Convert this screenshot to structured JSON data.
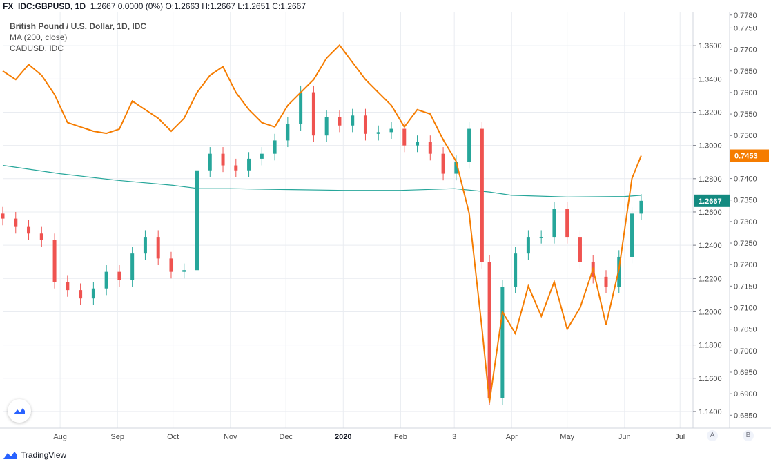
{
  "header": {
    "symbol": "FX_IDC:GBPUSD, 1D",
    "quote": "1.2667 0.0000 (0%)",
    "open_label": "O:",
    "open": "1.2663",
    "high_label": "H:",
    "high": "1.2667",
    "low_label": "L:",
    "low": "1.2651",
    "close_label": "C:",
    "close": "1.2667"
  },
  "legend": {
    "title": "British Pound / U.S. Dollar, 1D, IDC",
    "ma": "MA (200, close)",
    "overlay": "CADUSD, IDC"
  },
  "footer": {
    "brand": "TradingView"
  },
  "buttons": {
    "auto": "A",
    "log": "B"
  },
  "colors": {
    "up": "#26a69a",
    "down": "#ef5350",
    "ma": "#26a69a",
    "overlay": "#f57c00",
    "grid": "#e9ecf1",
    "last_gbp_badge": "#138a80"
  },
  "icons": {
    "tv_logo": "tradingview-cloud-icon"
  },
  "chart_data": {
    "type": "line",
    "title": "British Pound / U.S. Dollar, 1D, IDC",
    "x_ticks": [
      "Aug",
      "Sep",
      "Oct",
      "Nov",
      "Dec",
      "2020",
      "Feb",
      "3",
      "Apr",
      "May",
      "Jun",
      "Jul"
    ],
    "left_axis_gbp": {
      "ylim": [
        1.13,
        1.38
      ],
      "ticks": [
        "1.3600",
        "1.3400",
        "1.3200",
        "1.3000",
        "1.2800",
        "1.2600",
        "1.2400",
        "1.2200",
        "1.2000",
        "1.1800",
        "1.1600",
        "1.1400"
      ],
      "last_value": "1.2667"
    },
    "right_axis_cad": {
      "ylim": [
        0.682,
        0.7786
      ],
      "ticks": [
        "0.7780",
        "0.7750",
        "0.7700",
        "0.7650",
        "0.7600",
        "0.7550",
        "0.7500",
        "0.7450",
        "0.7400",
        "0.7350",
        "0.7300",
        "0.7250",
        "0.7200",
        "0.7150",
        "0.7100",
        "0.7050",
        "0.7000",
        "0.6950",
        "0.6900",
        "0.6850"
      ],
      "last_value": "0.7453"
    },
    "series": [
      {
        "name": "British Pound / U.S. Dollar, 1D, IDC",
        "kind": "candles_close",
        "x": [
          "Jul 1",
          "Jul 8",
          "Jul 15",
          "Jul 22",
          "Jul 29",
          "Aug 5",
          "Aug 12",
          "Aug 19",
          "Aug 26",
          "Sep 2",
          "Sep 9",
          "Sep 16",
          "Sep 23",
          "Sep 30",
          "Oct 7",
          "Oct 14",
          "Oct 21",
          "Oct 28",
          "Nov 4",
          "Nov 11",
          "Nov 18",
          "Nov 25",
          "Dec 2",
          "Dec 9",
          "Dec 16",
          "Dec 23",
          "Dec 30",
          "Jan 6",
          "Jan 13",
          "Jan 20",
          "Jan 27",
          "Feb 3",
          "Feb 10",
          "Feb 17",
          "Feb 24",
          "Mar 2",
          "Mar 9",
          "Mar 16",
          "Mar 20",
          "Mar 27",
          "Apr 3",
          "Apr 10",
          "Apr 17",
          "Apr 24",
          "May 1",
          "May 8",
          "May 15",
          "May 22",
          "May 29",
          "Jun 5",
          "Jun 10"
        ],
        "values": [
          1.256,
          1.251,
          1.247,
          1.243,
          1.218,
          1.213,
          1.208,
          1.214,
          1.224,
          1.219,
          1.235,
          1.245,
          1.232,
          1.224,
          1.225,
          1.285,
          1.295,
          1.288,
          1.285,
          1.292,
          1.295,
          1.303,
          1.313,
          1.332,
          1.306,
          1.317,
          1.312,
          1.318,
          1.307,
          1.308,
          1.31,
          1.3,
          1.302,
          1.295,
          1.283,
          1.29,
          1.31,
          1.23,
          1.148,
          1.215,
          1.235,
          1.245,
          1.245,
          1.262,
          1.245,
          1.23,
          1.221,
          1.215,
          1.233,
          1.259,
          1.2667
        ]
      },
      {
        "name": "MA (200, close)",
        "kind": "line",
        "x": [
          "Jul 1",
          "Aug 1",
          "Sep 1",
          "Oct 1",
          "Oct 15",
          "Nov 1",
          "Dec 1",
          "Jan 1",
          "Feb 1",
          "Mar 1",
          "Mar 20",
          "Apr 1",
          "May 1",
          "Jun 1",
          "Jun 10"
        ],
        "values": [
          1.288,
          1.283,
          1.279,
          1.276,
          1.274,
          1.274,
          1.2735,
          1.273,
          1.273,
          1.274,
          1.272,
          1.27,
          1.269,
          1.2693,
          1.27
        ]
      },
      {
        "name": "CADUSD, IDC",
        "kind": "line",
        "x": [
          "Jul 1",
          "Jul 8",
          "Jul 15",
          "Jul 22",
          "Jul 29",
          "Aug 5",
          "Aug 12",
          "Aug 19",
          "Aug 26",
          "Sep 2",
          "Sep 9",
          "Sep 16",
          "Sep 23",
          "Sep 30",
          "Oct 7",
          "Oct 14",
          "Oct 21",
          "Oct 28",
          "Nov 4",
          "Nov 11",
          "Nov 18",
          "Nov 25",
          "Dec 2",
          "Dec 9",
          "Dec 16",
          "Dec 23",
          "Dec 30",
          "Jan 6",
          "Jan 13",
          "Jan 20",
          "Jan 27",
          "Feb 3",
          "Feb 10",
          "Feb 17",
          "Feb 24",
          "Mar 2",
          "Mar 9",
          "Mar 16",
          "Mar 20",
          "Mar 27",
          "Apr 3",
          "Apr 10",
          "Apr 17",
          "Apr 24",
          "May 1",
          "May 8",
          "May 15",
          "May 22",
          "May 29",
          "Jun 5",
          "Jun 10"
        ],
        "values": [
          0.765,
          0.763,
          0.7665,
          0.764,
          0.7595,
          0.753,
          0.752,
          0.751,
          0.7505,
          0.7515,
          0.758,
          0.756,
          0.754,
          0.751,
          0.754,
          0.76,
          0.764,
          0.766,
          0.76,
          0.756,
          0.753,
          0.752,
          0.757,
          0.76,
          0.763,
          0.768,
          0.771,
          0.767,
          0.763,
          0.76,
          0.757,
          0.752,
          0.756,
          0.755,
          0.749,
          0.744,
          0.732,
          0.705,
          0.688,
          0.709,
          0.704,
          0.715,
          0.708,
          0.716,
          0.705,
          0.71,
          0.719,
          0.706,
          0.719,
          0.74,
          0.7453
        ]
      }
    ],
    "grid": true,
    "legend_position": "top-left"
  }
}
